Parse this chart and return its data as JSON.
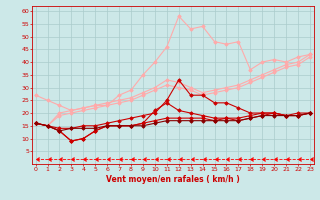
{
  "title": "",
  "xlabel": "Vent moyen/en rafales ( km/h )",
  "ylabel": "",
  "bg_color": "#cce8e8",
  "grid_color": "#aacccc",
  "x": [
    0,
    1,
    2,
    3,
    4,
    5,
    6,
    7,
    8,
    9,
    10,
    11,
    12,
    13,
    14,
    15,
    16,
    17,
    18,
    19,
    20,
    21,
    22,
    23
  ],
  "lines": [
    {
      "y": [
        27,
        25,
        23,
        21,
        22,
        23,
        23,
        27,
        29,
        35,
        40,
        46,
        58,
        53,
        54,
        48,
        47,
        48,
        37,
        40,
        41,
        40,
        42,
        43
      ],
      "color": "#ffaaaa",
      "marker": "D",
      "markersize": 1.8,
      "linewidth": 0.8,
      "dashed": false
    },
    {
      "y": [
        16,
        15,
        20,
        21,
        22,
        23,
        24,
        25,
        26,
        28,
        30,
        33,
        32,
        30,
        28,
        29,
        30,
        31,
        33,
        35,
        37,
        39,
        40,
        43
      ],
      "color": "#ffaaaa",
      "marker": "D",
      "markersize": 1.8,
      "linewidth": 0.8,
      "dashed": false
    },
    {
      "y": [
        16,
        15,
        19,
        20,
        21,
        22,
        23,
        24,
        25,
        27,
        29,
        31,
        30,
        29,
        27,
        28,
        29,
        30,
        32,
        34,
        36,
        38,
        39,
        42
      ],
      "color": "#ffaaaa",
      "marker": "D",
      "markersize": 1.8,
      "linewidth": 0.8,
      "dashed": false
    },
    {
      "y": [
        16,
        15,
        14,
        14,
        15,
        15,
        16,
        17,
        18,
        19,
        20,
        25,
        33,
        27,
        27,
        24,
        24,
        22,
        20,
        20,
        20,
        19,
        20,
        20
      ],
      "color": "#cc0000",
      "marker": "D",
      "markersize": 1.8,
      "linewidth": 0.8,
      "dashed": false
    },
    {
      "y": [
        16,
        15,
        13,
        9,
        10,
        13,
        15,
        15,
        15,
        16,
        21,
        24,
        21,
        20,
        19,
        18,
        18,
        17,
        18,
        19,
        20,
        19,
        19,
        20
      ],
      "color": "#cc0000",
      "marker": "D",
      "markersize": 1.8,
      "linewidth": 0.8,
      "dashed": false
    },
    {
      "y": [
        16,
        15,
        13,
        9,
        10,
        13,
        15,
        15,
        15,
        16,
        17,
        18,
        18,
        18,
        18,
        17,
        18,
        18,
        19,
        20,
        20,
        19,
        19,
        20
      ],
      "color": "#cc0000",
      "marker": "D",
      "markersize": 1.8,
      "linewidth": 0.8,
      "dashed": false
    },
    {
      "y": [
        16,
        15,
        13,
        14,
        14,
        14,
        15,
        15,
        15,
        15,
        16,
        17,
        17,
        17,
        17,
        17,
        17,
        17,
        18,
        19,
        19,
        19,
        19,
        20
      ],
      "color": "#880000",
      "marker": "D",
      "markersize": 1.8,
      "linewidth": 0.8,
      "dashed": false
    },
    {
      "y": [
        2,
        2,
        2,
        2,
        2,
        2,
        2,
        2,
        2,
        2,
        2,
        2,
        2,
        2,
        2,
        2,
        2,
        2,
        2,
        2,
        2,
        2,
        2,
        2
      ],
      "color": "#ff0000",
      "marker": 4,
      "markersize": 2.5,
      "linewidth": 0.6,
      "dashed": true
    }
  ],
  "yticks": [
    5,
    10,
    15,
    20,
    25,
    30,
    35,
    40,
    45,
    50,
    55,
    60
  ],
  "ylim": [
    0,
    62
  ],
  "xlim": [
    -0.3,
    23.3
  ],
  "xtick_fontsize": 4.5,
  "ytick_fontsize": 4.5,
  "xlabel_fontsize": 5.5,
  "tick_color": "#cc0000",
  "label_color": "#cc0000",
  "spine_color": "#cc0000"
}
